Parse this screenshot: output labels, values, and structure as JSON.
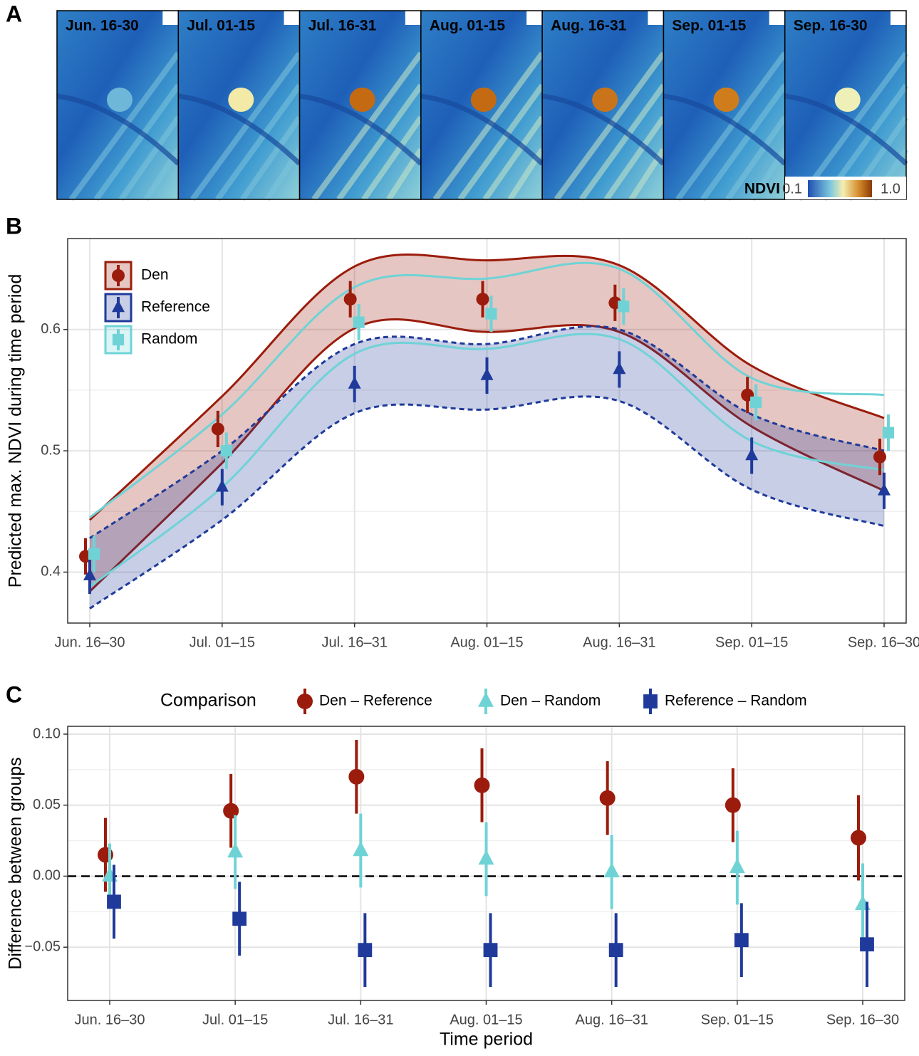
{
  "panel_labels": [
    "A",
    "B",
    "C"
  ],
  "panel_a": {
    "tiles": [
      "Jun. 16-30",
      "Jul. 01-15",
      "Jul. 16-31",
      "Aug. 01-15",
      "Aug. 16-31",
      "Sep. 01-15",
      "Sep. 16-30"
    ],
    "colorbar": {
      "label": "NDVI",
      "ticks": [
        0.1,
        {
          "value": 1.0,
          "label": "1.0"
        }
      ]
    }
  },
  "chart_data": [
    {
      "type": "errorbar-ribbon",
      "y_label": "Predicted max. NDVI during time period",
      "categories": [
        "Jun. 16–30",
        "Jul. 01–15",
        "Jul. 16–31",
        "Aug. 01–15",
        "Aug. 16–31",
        "Sep. 01–15",
        "Sep. 16–30"
      ],
      "ylim": [
        0.358,
        0.675
      ],
      "yticks": [
        0.4,
        0.5,
        0.6
      ],
      "grid": true,
      "legend": "top-left",
      "series": [
        {
          "name": "Den",
          "color": "#9b1c0c",
          "marker": "circle",
          "line_style": "solid",
          "values": [
            0.413,
            0.518,
            0.625,
            0.625,
            0.622,
            0.546,
            0.495
          ],
          "errors": [
            0.015,
            0.015,
            0.015,
            0.015,
            0.015,
            0.015,
            0.015
          ],
          "band_upper": [
            0.443,
            0.545,
            0.652,
            0.657,
            0.653,
            0.57,
            0.527
          ],
          "band_lower": [
            0.384,
            0.49,
            0.601,
            0.598,
            0.598,
            0.52,
            0.467
          ]
        },
        {
          "name": "Reference",
          "color": "#1f3a9a",
          "marker": "triangle",
          "line_style": "dashed",
          "values": [
            0.397,
            0.47,
            0.555,
            0.562,
            0.567,
            0.496,
            0.467
          ],
          "errors": [
            0.015,
            0.015,
            0.015,
            0.015,
            0.015,
            0.015,
            0.015
          ],
          "band_upper": [
            0.428,
            0.5,
            0.588,
            0.588,
            0.6,
            0.53,
            0.5
          ],
          "band_lower": [
            0.37,
            0.443,
            0.531,
            0.534,
            0.541,
            0.468,
            0.438
          ]
        },
        {
          "name": "Random",
          "color": "#6fd3d6",
          "marker": "square",
          "line_style": "solid",
          "values": [
            0.415,
            0.5,
            0.606,
            0.613,
            0.619,
            0.54,
            0.515
          ],
          "errors": [
            0.015,
            0.015,
            0.015,
            0.015,
            0.015,
            0.015,
            0.015
          ],
          "band_upper": [
            0.445,
            0.53,
            0.635,
            0.642,
            0.65,
            0.56,
            0.546
          ],
          "band_lower": [
            0.388,
            0.47,
            0.58,
            0.584,
            0.592,
            0.508,
            0.484
          ]
        }
      ]
    },
    {
      "type": "errorbar",
      "x_label": "Time period",
      "y_label": "Difference between groups",
      "legend_title": "Comparison",
      "legend": "top",
      "categories": [
        "Jun. 16–30",
        "Jul. 01–15",
        "Jul. 16–31",
        "Aug. 01–15",
        "Aug. 16–31",
        "Sep. 01–15",
        "Sep. 16–30"
      ],
      "ylim": [
        -0.0875,
        0.1055
      ],
      "yticks": [
        {
          "value": -0.05,
          "label": "−0.05"
        },
        {
          "value": 0,
          "label": "0.00"
        },
        {
          "value": 0.05,
          "label": "0.05"
        },
        {
          "value": 0.1,
          "label": "0.10"
        }
      ],
      "hline": 0,
      "grid": true,
      "series": [
        {
          "name": "Den – Reference",
          "color": "#9b1c0c",
          "marker": "circle",
          "values": [
            0.015,
            0.046,
            0.07,
            0.064,
            0.055,
            0.05,
            0.027
          ],
          "errors": [
            0.026,
            0.026,
            0.026,
            0.026,
            0.026,
            0.026,
            0.03
          ]
        },
        {
          "name": "Den – Random",
          "color": "#6fd3d6",
          "marker": "triangle",
          "values": [
            0.0,
            0.017,
            0.018,
            0.012,
            0.003,
            0.006,
            -0.02
          ],
          "errors": [
            0.023,
            0.026,
            0.026,
            0.026,
            0.026,
            0.026,
            0.029
          ]
        },
        {
          "name": "Reference – Random",
          "color": "#1f3a9a",
          "marker": "square",
          "values": [
            -0.018,
            -0.03,
            -0.052,
            -0.052,
            -0.052,
            -0.045,
            -0.048
          ],
          "errors": [
            0.026,
            0.026,
            0.026,
            0.026,
            0.026,
            0.026,
            0.03
          ]
        }
      ]
    }
  ]
}
